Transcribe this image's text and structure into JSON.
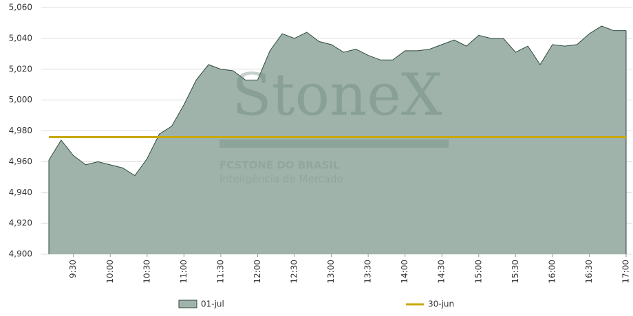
{
  "chart_data": {
    "type": "area",
    "categories": [
      null,
      null,
      "9:30",
      null,
      null,
      "10:00",
      null,
      null,
      "10:30",
      null,
      null,
      "11:00",
      null,
      null,
      "11:30",
      null,
      null,
      "12:00",
      null,
      null,
      "12:30",
      null,
      null,
      "13:00",
      null,
      null,
      "13:30",
      null,
      null,
      "14:00",
      null,
      null,
      "14:30",
      null,
      null,
      "15:00",
      null,
      null,
      "15:30",
      null,
      null,
      "16:00",
      null,
      null,
      "16:30",
      null,
      null,
      "17:00"
    ],
    "series": [
      {
        "name": "01-jul",
        "color": "#9fb3aa",
        "stroke": "#2d4a3c",
        "values": [
          4961,
          4974,
          4964,
          4958,
          4960,
          4958,
          4956,
          4951,
          4962,
          4978,
          4983,
          4997,
          5013,
          5023,
          5020,
          5019,
          5013,
          5013,
          5032,
          5043,
          5040,
          5044,
          5038,
          5036,
          5031,
          5033,
          5029,
          5026,
          5026,
          5032,
          5032,
          5033,
          5036,
          5039,
          5035,
          5042,
          5040,
          5040,
          5031,
          5035,
          5023,
          5036,
          5035,
          5036,
          5043,
          5048,
          5045,
          5045
        ]
      }
    ],
    "reference_line": {
      "name": "30-jun",
      "value": 4976,
      "color": "#c8a80e"
    },
    "ylim": [
      4900,
      5060
    ],
    "yticks": [
      {
        "value": 4900,
        "label": "4,900"
      },
      {
        "value": 4920,
        "label": "4,920"
      },
      {
        "value": 4940,
        "label": "4,940"
      },
      {
        "value": 4960,
        "label": "4,960"
      },
      {
        "value": 4980,
        "label": "4,980"
      },
      {
        "value": 5000,
        "label": "5,000"
      },
      {
        "value": 5020,
        "label": "5,020"
      },
      {
        "value": 5040,
        "label": "5,040"
      },
      {
        "value": 5060,
        "label": "5,060"
      }
    ],
    "grid": true,
    "watermark": {
      "logo": "StoneX",
      "line1": "FCSTONE DO BRASIL",
      "line2": "Inteligência de Mercado"
    }
  }
}
